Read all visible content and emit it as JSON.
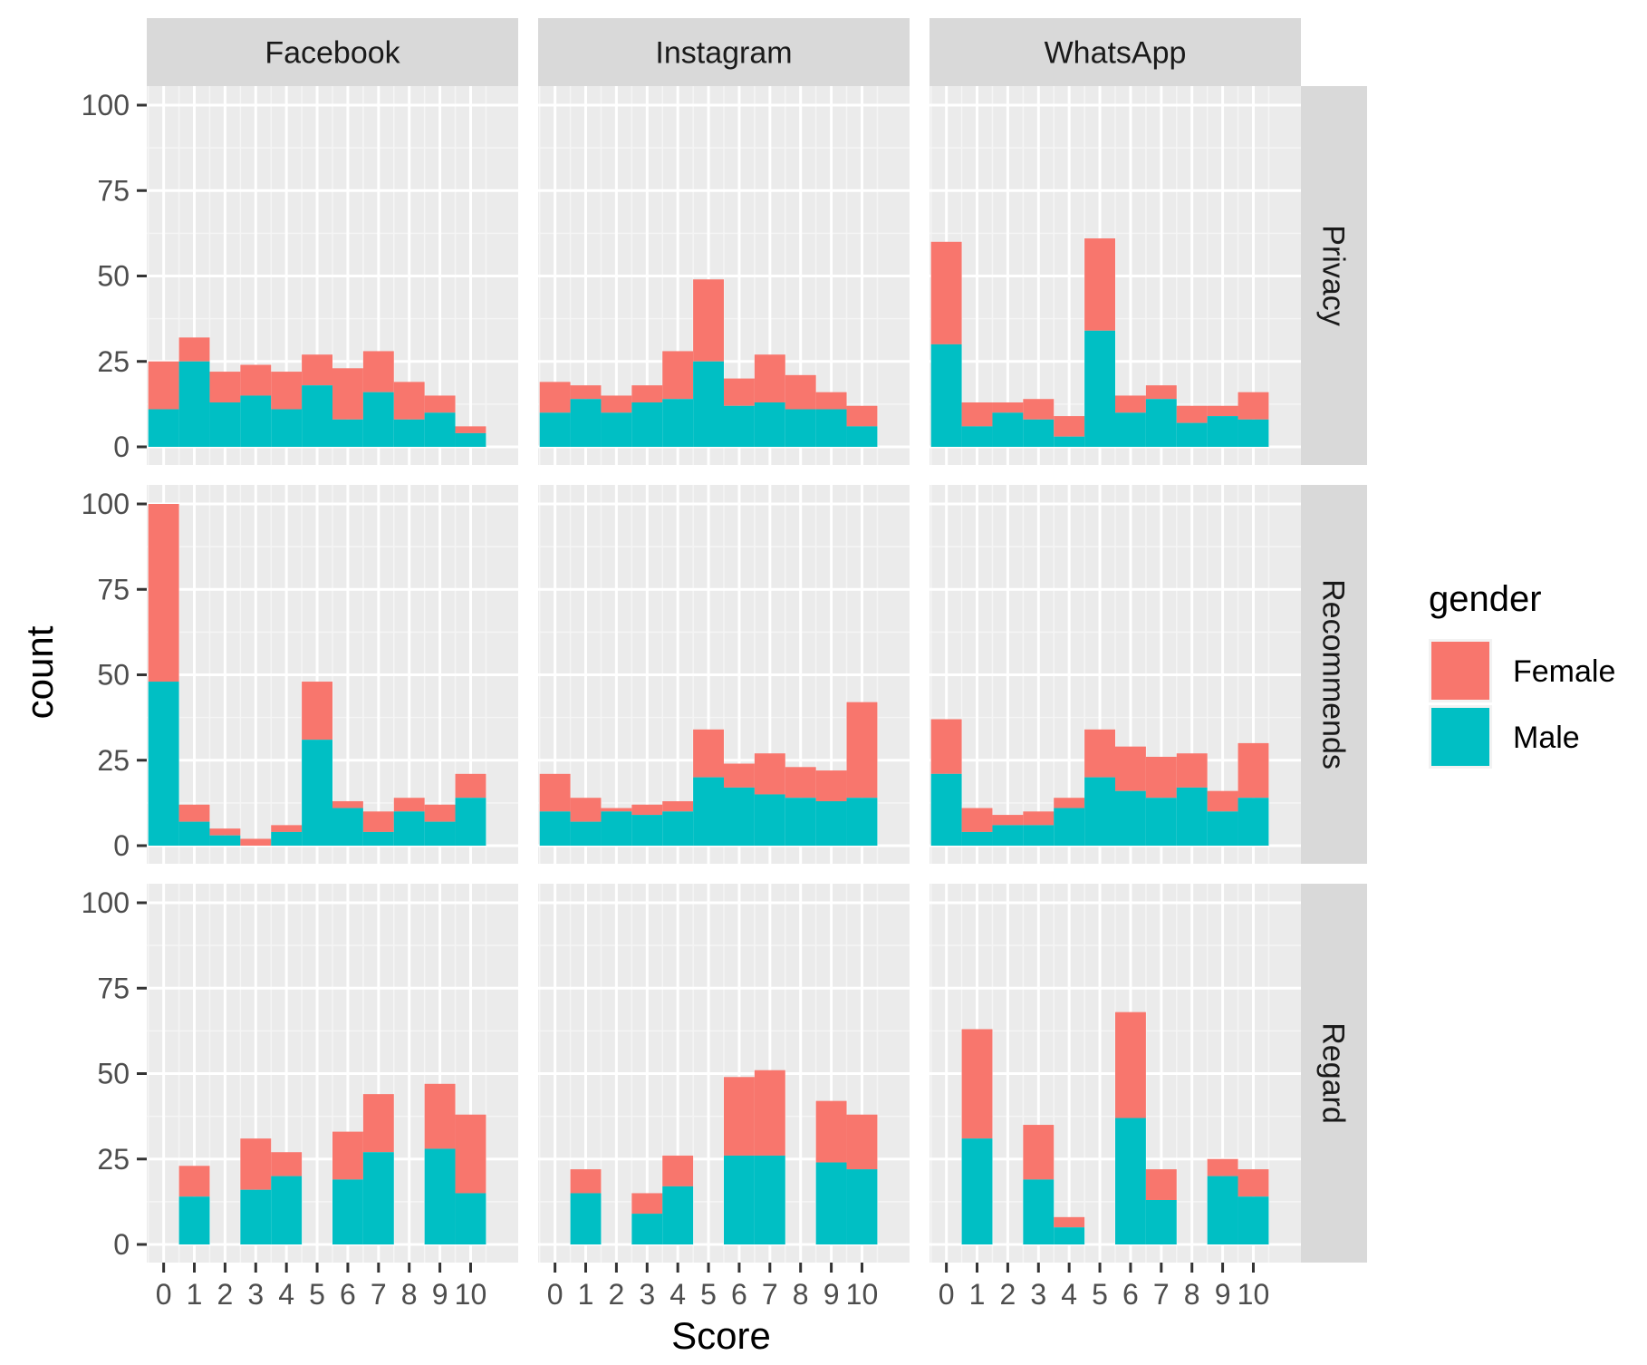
{
  "chart_data": {
    "type": "bar",
    "stacked": true,
    "facet_columns": [
      "Facebook",
      "Instagram",
      "WhatsApp"
    ],
    "facet_rows": [
      "Privacy",
      "Recommends",
      "Regard"
    ],
    "categories": [
      "0",
      "1",
      "2",
      "3",
      "4",
      "5",
      "6",
      "7",
      "8",
      "9",
      "10"
    ],
    "xlabel": "Score",
    "ylabel": "count",
    "ylim": [
      0,
      100
    ],
    "yticks": [
      0,
      25,
      50,
      75,
      100
    ],
    "legend": {
      "title": "gender",
      "position": "right",
      "entries": [
        {
          "name": "Female",
          "color": "#F8766D"
        },
        {
          "name": "Male",
          "color": "#00BFC4"
        }
      ]
    },
    "colors": {
      "Female": "#F8766D",
      "Male": "#00BFC4",
      "panel_bg": "#EBEBEB",
      "strip_bg": "#D9D9D9",
      "grid": "#FFFFFF"
    },
    "panels": [
      {
        "platform": "Facebook",
        "measure": "Privacy",
        "male": [
          11,
          25,
          13,
          15,
          11,
          18,
          8,
          16,
          8,
          10,
          4
        ],
        "total": [
          25,
          32,
          22,
          24,
          22,
          27,
          23,
          28,
          19,
          15,
          6
        ]
      },
      {
        "platform": "Instagram",
        "measure": "Privacy",
        "male": [
          10,
          14,
          10,
          13,
          14,
          25,
          12,
          13,
          11,
          11,
          6
        ],
        "total": [
          19,
          18,
          15,
          18,
          28,
          49,
          20,
          27,
          21,
          16,
          12
        ]
      },
      {
        "platform": "WhatsApp",
        "measure": "Privacy",
        "male": [
          30,
          6,
          10,
          8,
          3,
          34,
          10,
          14,
          7,
          9,
          8
        ],
        "total": [
          60,
          13,
          13,
          14,
          9,
          61,
          15,
          18,
          12,
          12,
          16
        ]
      },
      {
        "platform": "Facebook",
        "measure": "Recommends",
        "male": [
          48,
          7,
          3,
          0,
          4,
          31,
          11,
          4,
          10,
          7,
          14
        ],
        "total": [
          100,
          12,
          5,
          2,
          6,
          48,
          13,
          10,
          14,
          12,
          21
        ]
      },
      {
        "platform": "Instagram",
        "measure": "Recommends",
        "male": [
          10,
          7,
          10,
          9,
          10,
          20,
          17,
          15,
          14,
          13,
          14
        ],
        "total": [
          21,
          14,
          11,
          12,
          13,
          34,
          24,
          27,
          23,
          22,
          42
        ]
      },
      {
        "platform": "WhatsApp",
        "measure": "Recommends",
        "male": [
          21,
          4,
          6,
          6,
          11,
          20,
          16,
          14,
          17,
          10,
          14
        ],
        "total": [
          37,
          11,
          9,
          10,
          14,
          34,
          29,
          26,
          27,
          16,
          30
        ]
      },
      {
        "platform": "Facebook",
        "measure": "Regard",
        "male": [
          0,
          14,
          0,
          16,
          20,
          0,
          19,
          27,
          0,
          28,
          15
        ],
        "total": [
          0,
          23,
          0,
          31,
          27,
          0,
          33,
          44,
          0,
          47,
          38
        ]
      },
      {
        "platform": "Instagram",
        "measure": "Regard",
        "male": [
          0,
          15,
          0,
          9,
          17,
          0,
          26,
          26,
          0,
          24,
          22
        ],
        "total": [
          0,
          22,
          0,
          15,
          26,
          0,
          49,
          51,
          0,
          42,
          38
        ]
      },
      {
        "platform": "WhatsApp",
        "measure": "Regard",
        "male": [
          0,
          31,
          0,
          19,
          5,
          0,
          37,
          13,
          0,
          20,
          14
        ],
        "total": [
          0,
          63,
          0,
          35,
          8,
          0,
          68,
          22,
          0,
          25,
          22
        ]
      }
    ]
  }
}
